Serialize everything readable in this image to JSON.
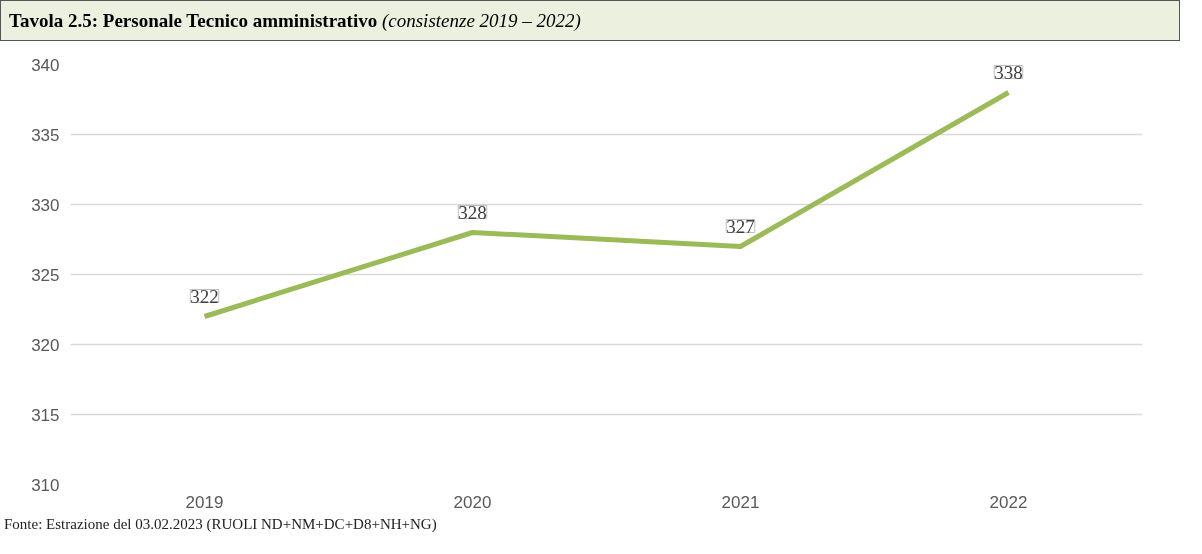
{
  "chart_data": {
    "type": "line",
    "title": "Tavola 2.5: Personale Tecnico amministrativo",
    "subtitle": "(consistenze 2019 – 2022)",
    "categories": [
      "2019",
      "2020",
      "2021",
      "2022"
    ],
    "series": [
      {
        "color": "#9bbb59",
        "values": [
          322,
          328,
          327,
          338
        ]
      }
    ],
    "ylim": [
      310,
      340
    ],
    "yticks": [
      310,
      315,
      320,
      325,
      330,
      335,
      340
    ],
    "grid": "y",
    "data_labels": true,
    "marker": "none",
    "line_style": "solid",
    "annotations": [
      "Fonte: Estrazione del 03.02.2023 (RUOLI ND+NM+DC+D8+NH+NG)"
    ]
  }
}
